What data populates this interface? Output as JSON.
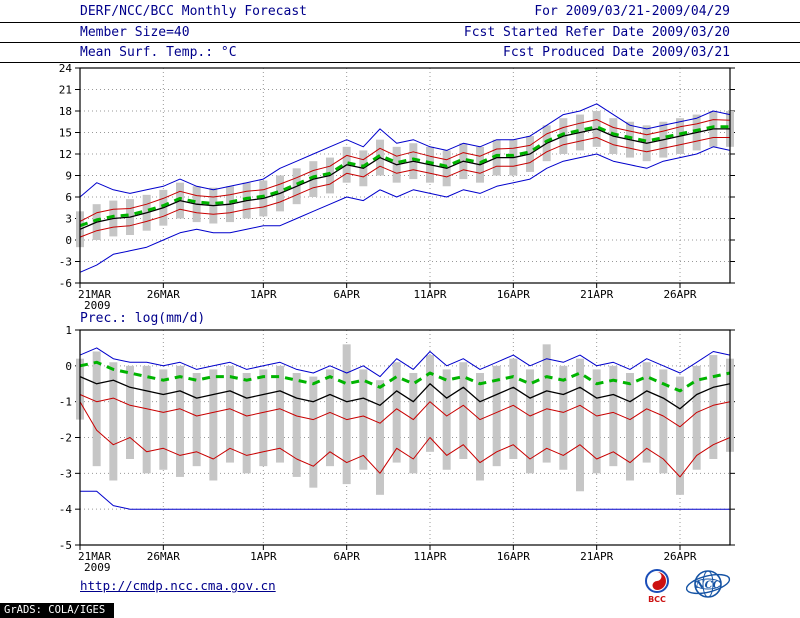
{
  "header": {
    "title": "DERF/NCC/BCC Monthly Forecast",
    "member_size": "Member Size=40",
    "for_range": "For 2009/03/21-2009/04/29",
    "fcst_started": "Fcst Started Refer Date 2009/03/20",
    "fcst_produced": "Fcst Produced Date 2009/03/21"
  },
  "footer": {
    "url": "http://cmdp.ncc.cma.gov.cn",
    "watermark": "GrADS: COLA/IGES",
    "bcc_logo_text": "BCC",
    "ncc_logo_text": "NCC"
  },
  "colors": {
    "header_text": "#00008b",
    "axis_text": "#000000",
    "grid": "#999999",
    "bar": "#c6c6c6",
    "blue": "#0000cc",
    "red": "#c80000",
    "green": "#00b400",
    "black": "#000000"
  },
  "chart_data": [
    {
      "type": "line",
      "title": "Mean Surf. Temp.: °C",
      "ylim": [
        -6,
        24
      ],
      "yticks": [
        24,
        21,
        18,
        15,
        12,
        9,
        6,
        3,
        0,
        -3,
        -6
      ],
      "x_count": 40,
      "x_ticks": [
        {
          "day": 0,
          "label": "21MAR",
          "sub": "2009"
        },
        {
          "day": 5,
          "label": "26MAR"
        },
        {
          "day": 11,
          "label": "1APR"
        },
        {
          "day": 16,
          "label": "6APR"
        },
        {
          "day": 21,
          "label": "11APR"
        },
        {
          "day": 26,
          "label": "16APR"
        },
        {
          "day": 31,
          "label": "21APR"
        },
        {
          "day": 36,
          "label": "26APR"
        }
      ],
      "bars": {
        "name": "ensemble-spread",
        "high": [
          4.0,
          5.0,
          5.5,
          5.7,
          6.3,
          7.0,
          8.0,
          7.5,
          7.3,
          7.5,
          8.0,
          8.3,
          9.0,
          10.0,
          11.0,
          11.5,
          13.0,
          12.5,
          14.0,
          13.0,
          13.5,
          13.0,
          12.5,
          13.5,
          13.0,
          14.0,
          14.0,
          14.5,
          16.0,
          17.0,
          17.5,
          18.0,
          17.0,
          16.5,
          16.0,
          16.5,
          17.0,
          17.5,
          18.0,
          18.0
        ],
        "low": [
          -1.0,
          0.0,
          0.5,
          0.7,
          1.3,
          2.0,
          3.0,
          2.5,
          2.3,
          2.5,
          3.0,
          3.3,
          4.0,
          5.0,
          6.0,
          6.5,
          8.0,
          7.5,
          9.0,
          8.0,
          8.5,
          8.0,
          7.5,
          8.5,
          8.0,
          9.0,
          9.0,
          9.5,
          11.0,
          12.0,
          12.5,
          13.0,
          12.0,
          11.5,
          11.0,
          11.5,
          12.0,
          12.5,
          13.0,
          13.0
        ]
      },
      "series": [
        {
          "name": "ensemble-max",
          "color": "blue",
          "width": 1,
          "values": [
            6.0,
            8.0,
            7.0,
            6.5,
            7.0,
            7.5,
            8.5,
            7.5,
            7.0,
            7.5,
            8.0,
            8.5,
            10.0,
            11.0,
            12.0,
            13.0,
            14.0,
            13.0,
            15.5,
            13.5,
            14.0,
            13.0,
            12.5,
            13.5,
            13.0,
            14.0,
            14.0,
            14.5,
            16.0,
            17.5,
            18.0,
            19.0,
            17.5,
            16.0,
            15.5,
            16.0,
            16.5,
            17.0,
            18.0,
            17.5
          ]
        },
        {
          "name": "ensemble-min",
          "color": "blue",
          "width": 1,
          "values": [
            -4.5,
            -3.5,
            -2.0,
            -1.5,
            -1.0,
            0.0,
            1.0,
            1.5,
            1.0,
            1.0,
            1.5,
            2.0,
            2.0,
            3.0,
            4.0,
            5.0,
            6.0,
            5.5,
            7.0,
            6.0,
            7.0,
            6.5,
            6.0,
            7.0,
            6.5,
            7.5,
            8.0,
            8.5,
            10.0,
            11.0,
            11.5,
            12.0,
            11.0,
            10.5,
            10.0,
            11.0,
            11.5,
            12.0,
            13.0,
            12.5
          ]
        },
        {
          "name": "upper-quartile",
          "color": "red",
          "width": 1,
          "values": [
            2.6,
            3.8,
            4.3,
            4.4,
            5.0,
            5.8,
            6.8,
            6.2,
            6.0,
            6.3,
            6.8,
            7.0,
            7.8,
            8.7,
            9.7,
            10.3,
            11.8,
            11.2,
            12.8,
            11.7,
            12.3,
            11.7,
            11.2,
            12.2,
            11.7,
            12.7,
            12.8,
            13.2,
            14.8,
            15.7,
            16.3,
            16.8,
            15.7,
            15.2,
            14.7,
            15.2,
            15.8,
            16.2,
            16.8,
            16.7
          ]
        },
        {
          "name": "lower-quartile",
          "color": "red",
          "width": 1,
          "values": [
            0.4,
            1.3,
            1.8,
            2.0,
            2.6,
            3.3,
            4.3,
            3.8,
            3.6,
            3.8,
            4.3,
            4.6,
            5.3,
            6.3,
            7.3,
            7.8,
            9.3,
            8.8,
            10.3,
            9.3,
            9.8,
            9.3,
            8.8,
            9.8,
            9.3,
            10.3,
            10.3,
            10.8,
            12.3,
            13.3,
            13.8,
            14.3,
            13.3,
            12.8,
            12.3,
            12.8,
            13.3,
            13.8,
            14.3,
            14.3
          ]
        },
        {
          "name": "ensemble-mean",
          "color": "black",
          "width": 1.3,
          "values": [
            1.5,
            2.5,
            3.0,
            3.2,
            3.8,
            4.5,
            5.5,
            5.0,
            4.8,
            5.0,
            5.5,
            5.8,
            6.5,
            7.5,
            8.5,
            9.0,
            10.5,
            10.0,
            11.5,
            10.5,
            11.0,
            10.5,
            10.0,
            11.0,
            10.5,
            11.5,
            11.5,
            12.0,
            13.5,
            14.5,
            15.0,
            15.5,
            14.5,
            14.0,
            13.5,
            14.0,
            14.5,
            15.0,
            15.5,
            15.5
          ]
        },
        {
          "name": "reference-dashed",
          "color": "green",
          "width": 3,
          "dash": true,
          "values": [
            2.0,
            2.8,
            3.3,
            3.5,
            4.1,
            4.8,
            5.8,
            5.3,
            5.1,
            5.3,
            5.8,
            6.1,
            6.8,
            7.8,
            8.8,
            9.3,
            10.8,
            10.3,
            11.8,
            10.8,
            11.3,
            10.8,
            10.3,
            11.3,
            10.8,
            11.8,
            11.8,
            12.3,
            13.8,
            14.8,
            15.3,
            15.8,
            14.8,
            14.3,
            13.8,
            14.3,
            14.8,
            15.3,
            15.8,
            15.8
          ]
        }
      ]
    },
    {
      "type": "line",
      "title": "Prec.: log(mm/d)",
      "ylim": [
        -5,
        1
      ],
      "yticks": [
        1,
        0,
        -1,
        -2,
        -3,
        -4,
        -5
      ],
      "x_count": 40,
      "x_ticks": [
        {
          "day": 0,
          "label": "21MAR",
          "sub": "2009"
        },
        {
          "day": 5,
          "label": "26MAR"
        },
        {
          "day": 11,
          "label": "1APR"
        },
        {
          "day": 16,
          "label": "6APR"
        },
        {
          "day": 21,
          "label": "11APR"
        },
        {
          "day": 26,
          "label": "16APR"
        },
        {
          "day": 31,
          "label": "21APR"
        },
        {
          "day": 36,
          "label": "26APR"
        }
      ],
      "bars": {
        "name": "ensemble-spread",
        "high": [
          0.2,
          0.4,
          0.1,
          0.0,
          0.0,
          -0.1,
          0.0,
          -0.2,
          -0.1,
          0.0,
          -0.2,
          -0.1,
          0.0,
          -0.2,
          -0.3,
          -0.1,
          0.6,
          -0.1,
          -0.4,
          0.1,
          -0.2,
          0.3,
          -0.1,
          0.1,
          -0.2,
          0.0,
          0.2,
          -0.1,
          0.6,
          0.0,
          0.2,
          -0.1,
          0.0,
          -0.2,
          0.1,
          -0.1,
          -0.3,
          0.0,
          0.3,
          0.2
        ],
        "low": [
          -1.5,
          -2.8,
          -3.2,
          -2.6,
          -3.0,
          -2.9,
          -3.1,
          -2.8,
          -3.2,
          -2.7,
          -3.0,
          -2.8,
          -2.7,
          -3.1,
          -3.4,
          -2.8,
          -3.3,
          -2.9,
          -3.6,
          -2.7,
          -3.0,
          -2.4,
          -2.9,
          -2.6,
          -3.2,
          -2.8,
          -2.6,
          -3.0,
          -2.7,
          -2.9,
          -3.5,
          -3.0,
          -2.8,
          -3.2,
          -2.7,
          -3.0,
          -3.6,
          -2.9,
          -2.6,
          -2.4
        ]
      },
      "series": [
        {
          "name": "ensemble-max",
          "color": "blue",
          "width": 1,
          "values": [
            0.3,
            0.5,
            0.2,
            0.1,
            0.1,
            0.0,
            0.1,
            -0.1,
            0.0,
            0.1,
            -0.1,
            0.0,
            0.1,
            -0.1,
            -0.2,
            0.0,
            -0.2,
            0.0,
            -0.3,
            0.2,
            -0.1,
            0.4,
            0.0,
            0.2,
            -0.1,
            0.1,
            0.3,
            0.0,
            0.2,
            0.1,
            0.3,
            0.0,
            0.1,
            -0.1,
            0.2,
            0.0,
            -0.2,
            0.1,
            0.4,
            0.3
          ]
        },
        {
          "name": "ensemble-min",
          "color": "blue",
          "width": 1,
          "values": [
            -3.5,
            -3.5,
            -3.9,
            -4.0,
            -4.0,
            -4.0,
            -4.0,
            -4.0,
            -4.0,
            -4.0,
            -4.0,
            -4.0,
            -4.0,
            -4.0,
            -4.0,
            -4.0,
            -4.0,
            -4.0,
            -4.0,
            -4.0,
            -4.0,
            -4.0,
            -4.0,
            -4.0,
            -4.0,
            -4.0,
            -4.0,
            -4.0,
            -4.0,
            -4.0,
            -4.0,
            -4.0,
            -4.0,
            -4.0,
            -4.0,
            -4.0,
            -4.0,
            -4.0,
            -4.0,
            -4.0
          ]
        },
        {
          "name": "upper-quartile",
          "color": "red",
          "width": 1,
          "values": [
            -0.8,
            -1.0,
            -0.9,
            -1.1,
            -1.2,
            -1.3,
            -1.2,
            -1.4,
            -1.3,
            -1.2,
            -1.4,
            -1.3,
            -1.2,
            -1.4,
            -1.5,
            -1.3,
            -1.5,
            -1.4,
            -1.6,
            -1.2,
            -1.5,
            -1.0,
            -1.4,
            -1.1,
            -1.5,
            -1.3,
            -1.1,
            -1.4,
            -1.2,
            -1.3,
            -1.1,
            -1.4,
            -1.3,
            -1.5,
            -1.2,
            -1.4,
            -1.7,
            -1.3,
            -1.1,
            -1.0
          ]
        },
        {
          "name": "lower-quartile",
          "color": "red",
          "width": 1,
          "values": [
            -1.0,
            -1.8,
            -2.2,
            -2.0,
            -2.4,
            -2.3,
            -2.5,
            -2.4,
            -2.6,
            -2.3,
            -2.5,
            -2.4,
            -2.3,
            -2.6,
            -2.8,
            -2.4,
            -2.7,
            -2.5,
            -3.0,
            -2.3,
            -2.6,
            -2.0,
            -2.5,
            -2.2,
            -2.7,
            -2.4,
            -2.2,
            -2.6,
            -2.3,
            -2.5,
            -2.2,
            -2.6,
            -2.4,
            -2.7,
            -2.3,
            -2.6,
            -3.1,
            -2.5,
            -2.2,
            -2.0
          ]
        },
        {
          "name": "ensemble-mean",
          "color": "black",
          "width": 1.3,
          "values": [
            -0.3,
            -0.5,
            -0.4,
            -0.6,
            -0.7,
            -0.8,
            -0.7,
            -0.9,
            -0.8,
            -0.7,
            -0.9,
            -0.8,
            -0.7,
            -0.9,
            -1.0,
            -0.8,
            -1.0,
            -0.9,
            -1.1,
            -0.7,
            -1.0,
            -0.5,
            -0.9,
            -0.6,
            -1.0,
            -0.8,
            -0.6,
            -0.9,
            -0.7,
            -0.8,
            -0.6,
            -0.9,
            -0.8,
            -1.0,
            -0.7,
            -0.9,
            -1.2,
            -0.8,
            -0.6,
            -0.5
          ]
        },
        {
          "name": "reference-dashed",
          "color": "green",
          "width": 3,
          "dash": true,
          "values": [
            0.0,
            0.1,
            -0.1,
            -0.2,
            -0.3,
            -0.4,
            -0.3,
            -0.4,
            -0.3,
            -0.3,
            -0.4,
            -0.3,
            -0.3,
            -0.4,
            -0.5,
            -0.3,
            -0.5,
            -0.4,
            -0.6,
            -0.3,
            -0.5,
            -0.2,
            -0.4,
            -0.3,
            -0.5,
            -0.4,
            -0.3,
            -0.5,
            -0.3,
            -0.4,
            -0.2,
            -0.5,
            -0.4,
            -0.5,
            -0.3,
            -0.5,
            -0.7,
            -0.4,
            -0.3,
            -0.2
          ]
        }
      ]
    }
  ]
}
